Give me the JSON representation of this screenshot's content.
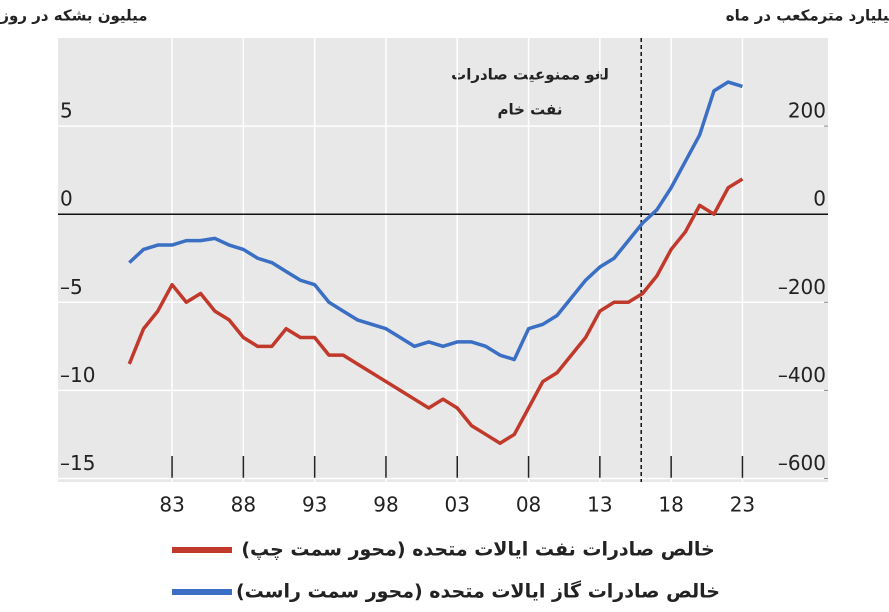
{
  "chart_data": {
    "type": "line",
    "y_title": "میلیون بشکه در روز",
    "y2_title": "میلیارد مترمکعب در ماه",
    "annotation": [
      "لغو ممنوعیت صادرات",
      "نفت خام"
    ],
    "annotation_x": 2015.9,
    "x": [
      1980,
      1981,
      1982,
      1983,
      1984,
      1985,
      1986,
      1987,
      1988,
      1989,
      1990,
      1991,
      1992,
      1993,
      1994,
      1995,
      1996,
      1997,
      1998,
      1999,
      2000,
      2001,
      2002,
      2003,
      2004,
      2005,
      2006,
      2007,
      2008,
      2009,
      2010,
      2011,
      2012,
      2013,
      2014,
      2015,
      2016,
      2017,
      2018,
      2019,
      2020,
      2021,
      2022,
      2023
    ],
    "series": [
      {
        "name": "خالص صادرات نفت ایالات متحده (محور سمت چپ)",
        "color": "#c0392b",
        "values": [
          -8.5,
          -6.5,
          -5.5,
          -4,
          -5,
          -4.5,
          -5.5,
          -6,
          -7,
          -7.5,
          -7.5,
          -6.5,
          -7,
          -7,
          -8,
          -8,
          -8.5,
          -9,
          -9.5,
          -10,
          -10.5,
          -11,
          -10.5,
          -11,
          -12,
          -12.5,
          -13,
          -12.5,
          -11,
          -9.5,
          -9,
          -8,
          -7,
          -5.5,
          -5,
          -5,
          -4.5,
          -3.5,
          -2,
          -1,
          0.5,
          0,
          1.5,
          2
        ]
      },
      {
        "name": "خالص صادرات گاز ایالات متحده (محور سمت راست)",
        "color": "#3a6fc4",
        "axis": "y2",
        "values": [
          -110,
          -80,
          -70,
          -70,
          -60,
          -60,
          -55,
          -70,
          -80,
          -100,
          -110,
          -130,
          -150,
          -160,
          -200,
          -220,
          -240,
          -250,
          -260,
          -280,
          -300,
          -290,
          -300,
          -290,
          -290,
          -300,
          -320,
          -330,
          -260,
          -250,
          -230,
          -190,
          -150,
          -120,
          -100,
          -60,
          -20,
          10,
          60,
          120,
          180,
          280,
          300,
          290
        ]
      }
    ],
    "xlim": [
      1975,
      2029
    ],
    "xticks": [
      {
        "value": 1983,
        "label": "83"
      },
      {
        "value": 1988,
        "label": "88"
      },
      {
        "value": 1993,
        "label": "93"
      },
      {
        "value": 1998,
        "label": "98"
      },
      {
        "value": 2003,
        "label": "03"
      },
      {
        "value": 2008,
        "label": "08"
      },
      {
        "value": 2013,
        "label": "13"
      },
      {
        "value": 2018,
        "label": "18"
      },
      {
        "value": 2023,
        "label": "23"
      }
    ],
    "ylim": [
      -15.2,
      10
    ],
    "yticks": [
      5,
      0,
      {
        "value": -5,
        "label": "–5"
      },
      {
        "value": -10,
        "label": "–10"
      },
      {
        "value": -15,
        "label": "–15"
      }
    ],
    "y2lim": [
      -608,
      400
    ],
    "y2ticks": [
      200,
      0,
      {
        "value": -200,
        "label": "–200"
      },
      {
        "value": -400,
        "label": "–400"
      },
      {
        "value": -600,
        "label": "–600"
      }
    ],
    "grid": true
  }
}
